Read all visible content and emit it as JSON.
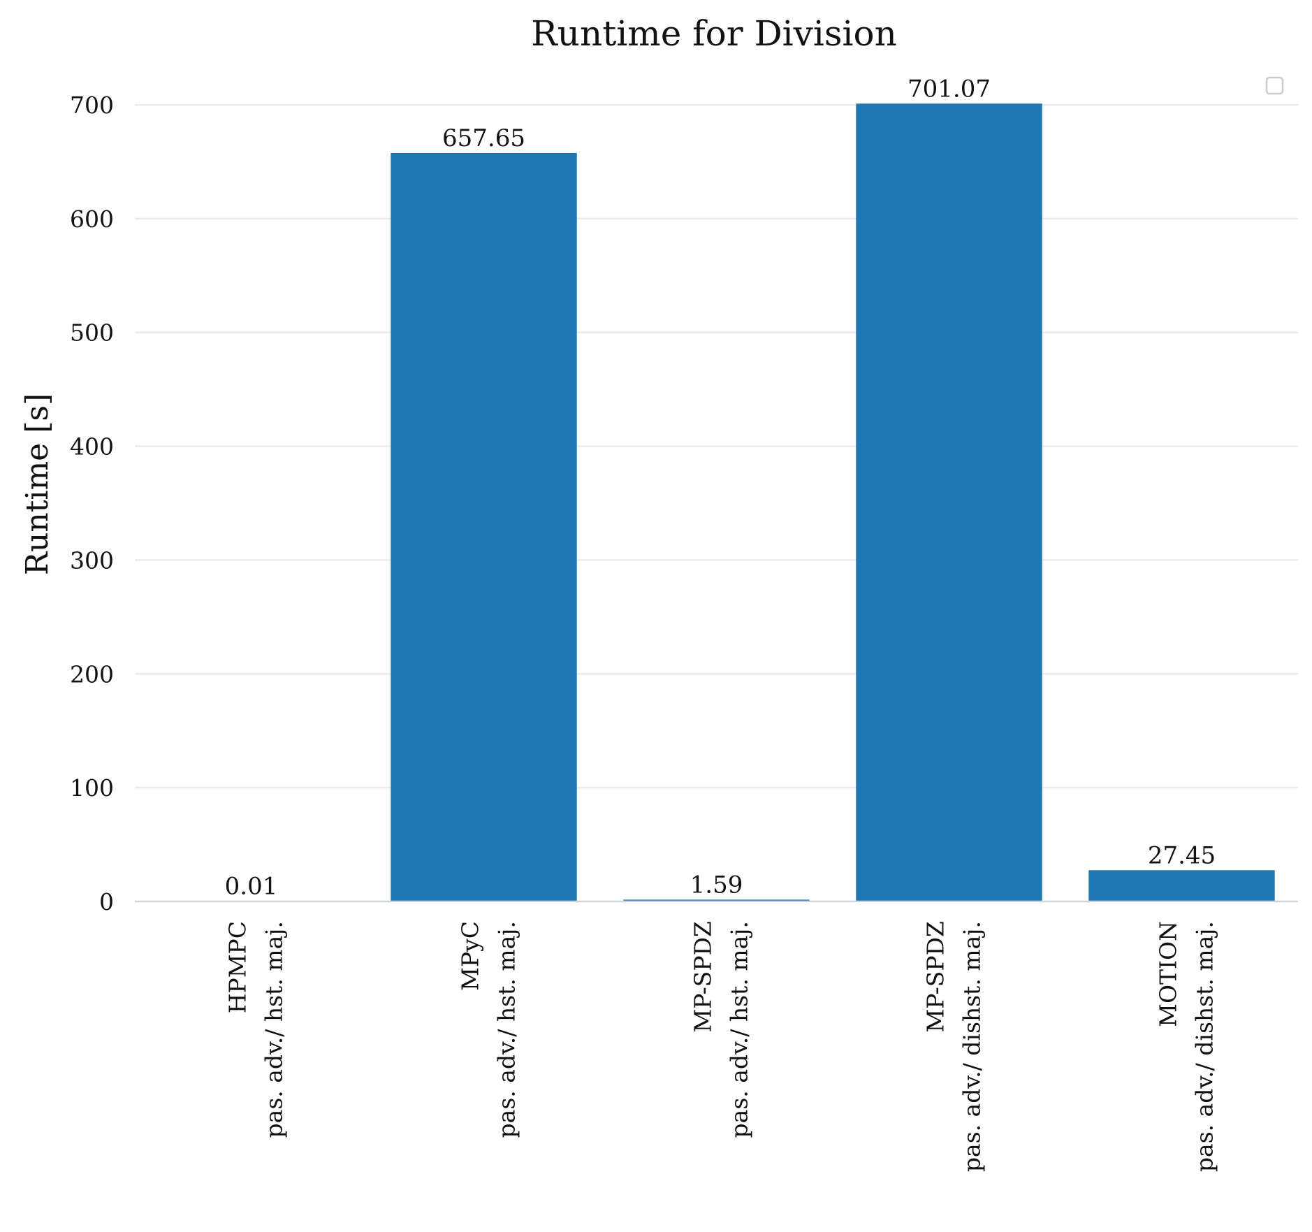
{
  "chart_data": {
    "type": "bar",
    "title": "Runtime for Division",
    "xlabel": "",
    "ylabel": "Runtime [s]",
    "ylim": [
      0,
      700
    ],
    "yticks": [
      0,
      100,
      200,
      300,
      400,
      500,
      600,
      700
    ],
    "grid": true,
    "legend": "top-right, empty",
    "bar_color": "#1f77b4",
    "categories": [
      {
        "name": "HPMPC",
        "setting": "pas. adv./ hst. maj."
      },
      {
        "name": "MPyC",
        "setting": "pas. adv./ hst. maj."
      },
      {
        "name": "MP-SPDZ",
        "setting": "pas. adv./ hst. maj."
      },
      {
        "name": "MP-SPDZ",
        "setting": "pas. adv./ dishst. maj."
      },
      {
        "name": "MOTION",
        "setting": "pas. adv./ dishst. maj."
      }
    ],
    "values": [
      0.01,
      657.65,
      1.59,
      701.07,
      27.45
    ],
    "value_labels": [
      "0.01",
      "657.65",
      "1.59",
      "701.07",
      "27.45"
    ]
  }
}
